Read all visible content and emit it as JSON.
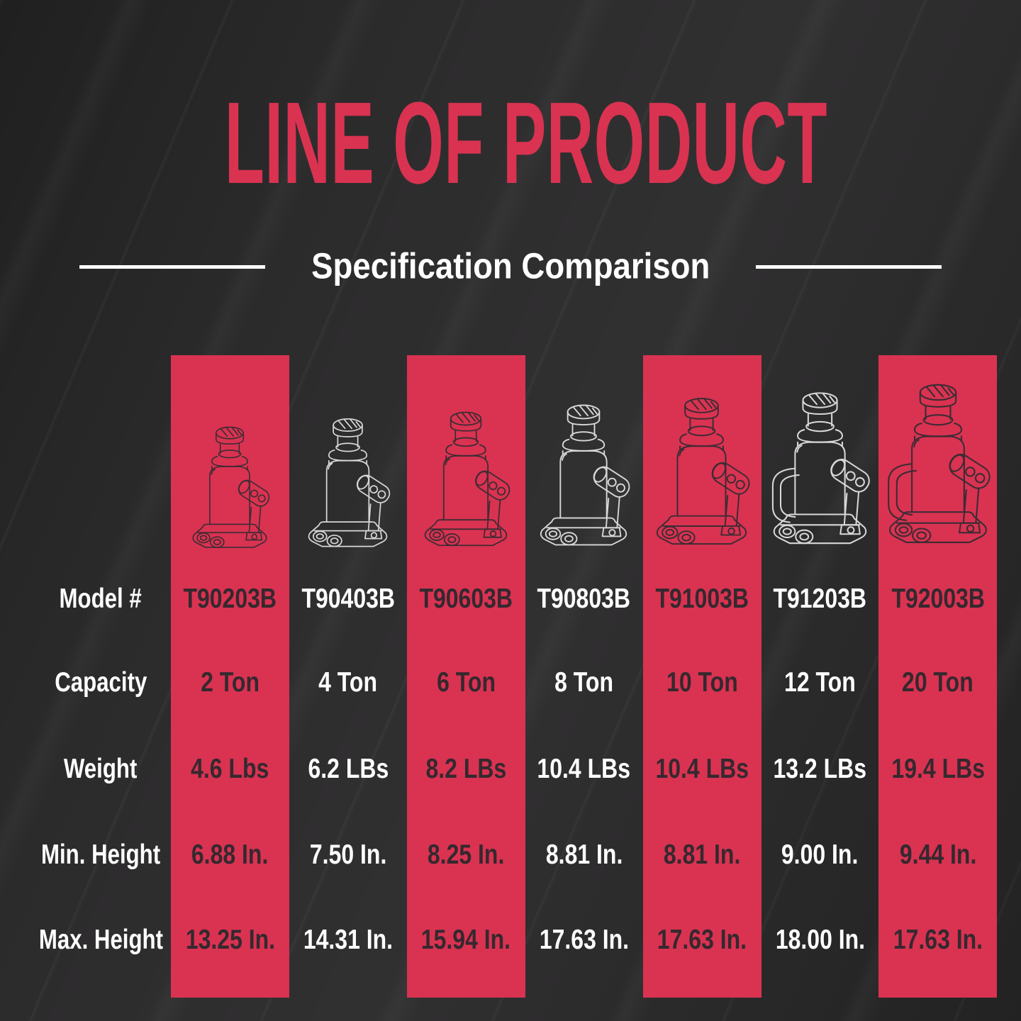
{
  "header": {
    "title": "LINE OF PRODUCT",
    "subtitle": "Specification Comparison"
  },
  "colors": {
    "background": "#2d2c2d",
    "accent_red": "#d93351",
    "text_on_red": "#35282f",
    "text_light": "#ffffff",
    "jack_outline_light": "#d8d8d8",
    "jack_outline_dark": "#3f2b34"
  },
  "table": {
    "row_labels": [
      {
        "key": "model",
        "label": "Model #"
      },
      {
        "key": "capacity",
        "label": "Capacity"
      },
      {
        "key": "weight",
        "label": "Weight"
      },
      {
        "key": "min_height",
        "label": "Min. Height"
      },
      {
        "key": "max_height",
        "label": "Max. Height"
      }
    ],
    "columns": [
      {
        "model": "T90203B",
        "capacity": "2 Ton",
        "weight": "4.6 Lbs",
        "min_height": "6.88 In.",
        "max_height": "13.25 In."
      },
      {
        "model": "T90403B",
        "capacity": "4 Ton",
        "weight": "6.2 LBs",
        "min_height": "7.50 In.",
        "max_height": "14.31 In."
      },
      {
        "model": "T90603B",
        "capacity": "6 Ton",
        "weight": "8.2 LBs",
        "min_height": "8.25 In.",
        "max_height": "15.94 In."
      },
      {
        "model": "T90803B",
        "capacity": "8 Ton",
        "weight": "10.4 LBs",
        "min_height": "8.81 In.",
        "max_height": "17.63 In."
      },
      {
        "model": "T91003B",
        "capacity": "10 Ton",
        "weight": "10.4 LBs",
        "min_height": "8.81 In.",
        "max_height": "17.63 In."
      },
      {
        "model": "T91203B",
        "capacity": "12 Ton",
        "weight": "13.2 LBs",
        "min_height": "9.00 In.",
        "max_height": "18.00 In."
      },
      {
        "model": "T92003B",
        "capacity": "20 Ton",
        "weight": "19.4 LBs",
        "min_height": "9.44 In.",
        "max_height": "17.63 In."
      }
    ]
  },
  "chart_data": {
    "type": "table",
    "title": "LINE OF PRODUCT",
    "subtitle": "Specification Comparison",
    "columns": [
      "Model #",
      "T90203B",
      "T90403B",
      "T90603B",
      "T90803B",
      "T91003B",
      "T91203B",
      "T92003B"
    ],
    "rows": [
      [
        "Capacity",
        "2 Ton",
        "4 Ton",
        "6 Ton",
        "8 Ton",
        "10 Ton",
        "12 Ton",
        "20 Ton"
      ],
      [
        "Weight",
        "4.6 Lbs",
        "6.2 LBs",
        "8.2 LBs",
        "10.4 LBs",
        "10.4 LBs",
        "13.2 LBs",
        "19.4 LBs"
      ],
      [
        "Min. Height",
        "6.88 In.",
        "7.50 In.",
        "8.25 In.",
        "8.81 In.",
        "8.81 In.",
        "9.00 In.",
        "9.44 In."
      ],
      [
        "Max. Height",
        "13.25 In.",
        "14.31 In.",
        "15.94 In.",
        "17.63 In.",
        "17.63 In.",
        "18.00 In.",
        "17.63 In."
      ]
    ]
  }
}
